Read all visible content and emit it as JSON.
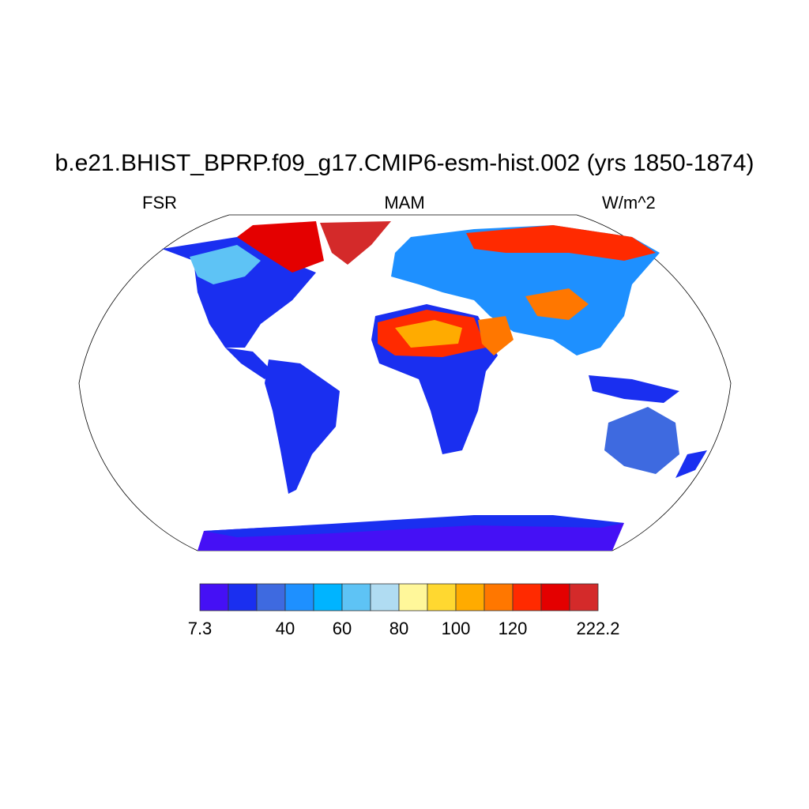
{
  "title": "b.e21.BHIST_BPRP.f09_g17.CMIP6-esm-hist.002 (yrs 1850-1874)",
  "left_string": "FSR",
  "center_string": "MAM",
  "right_string": "W/m^2",
  "map": {
    "projection": "Robinson",
    "variable": "FSR",
    "season": "MAM",
    "units": "W/m^2"
  },
  "colorbar": {
    "min": 7.3,
    "max": 222.2,
    "levels": [
      20,
      30,
      40,
      50,
      60,
      70,
      80,
      90,
      100,
      110,
      120,
      130,
      140
    ],
    "colors": [
      "#4510f5",
      "#1a2ff0",
      "#3e6ae0",
      "#1e90ff",
      "#00b4ff",
      "#5ec3f5",
      "#b0dcf2",
      "#fff79a",
      "#ffd830",
      "#ffab00",
      "#ff7700",
      "#ff2a00",
      "#e40000",
      "#d42a2a"
    ],
    "labels": [
      {
        "text": "7.3",
        "i": 0
      },
      {
        "text": "40",
        "i": 3
      },
      {
        "text": "60",
        "i": 5
      },
      {
        "text": "80",
        "i": 7
      },
      {
        "text": "100",
        "i": 9
      },
      {
        "text": "120",
        "i": 11
      },
      {
        "text": "222.2",
        "i": 14
      }
    ]
  }
}
